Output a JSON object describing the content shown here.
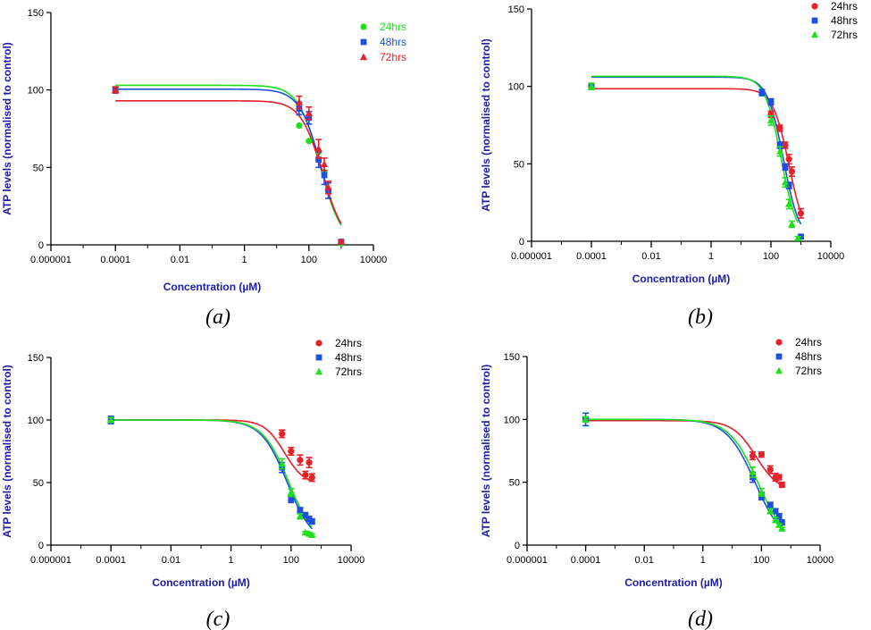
{
  "series_colors": {
    "24hrs": "#e8202a",
    "48hrs": "#1f4fe0",
    "72hrs": "#1ee01a"
  },
  "series_colors_a": {
    "24hrs": "#1ee01a",
    "48hrs": "#1f4fe0",
    "72hrs": "#e8202a"
  },
  "chart_data": [
    {
      "id": "a",
      "type": "scatter",
      "caption": "(a)",
      "xlabel": "Concentration (µM)",
      "ylabel": "ATP levels (normalised to control)",
      "xscale": "log",
      "xlim": [
        1e-06,
        10000
      ],
      "ylim": [
        0,
        150
      ],
      "xticks": [
        "0.000001",
        "0.0001",
        "0.01",
        "1",
        "100",
        "10000"
      ],
      "yticks": [
        "0",
        "50",
        "100",
        "150"
      ],
      "legend_position": "top-right",
      "legend_text_colored": true,
      "series": [
        {
          "name": "24hrs",
          "marker": "circle",
          "color": "#1ee01a",
          "top": 103,
          "ic50": 220,
          "hill": 1.3,
          "cutoff": 1000,
          "points": [
            [
              0.0001,
              100,
              0
            ],
            [
              50,
              77,
              0
            ],
            [
              100,
              67,
              0
            ],
            [
              200,
              60,
              0
            ],
            [
              300,
              47,
              0
            ],
            [
              400,
              35,
              0
            ],
            [
              1000,
              1,
              0
            ]
          ]
        },
        {
          "name": "48hrs",
          "marker": "square",
          "color": "#1f4fe0",
          "top": 100.5,
          "ic50": 240,
          "hill": 1.3,
          "cutoff": 1000,
          "points": [
            [
              0.0001,
              100,
              2
            ],
            [
              50,
              88,
              4
            ],
            [
              100,
              82,
              4
            ],
            [
              200,
              55,
              5
            ],
            [
              300,
              45,
              6
            ],
            [
              400,
              35,
              5
            ],
            [
              1000,
              2,
              1
            ]
          ]
        },
        {
          "name": "72hrs",
          "marker": "triangle",
          "color": "#e8202a",
          "top": 93,
          "ic50": 260,
          "hill": 1.3,
          "cutoff": 1000,
          "points": [
            [
              0.0001,
              100,
              2
            ],
            [
              50,
              92,
              4
            ],
            [
              100,
              85,
              4
            ],
            [
              200,
              62,
              6
            ],
            [
              300,
              52,
              4
            ],
            [
              400,
              37,
              4
            ],
            [
              1000,
              2,
              1
            ]
          ]
        }
      ]
    },
    {
      "id": "b",
      "type": "scatter",
      "caption": "(b)",
      "xlabel": "Concentration (µM)",
      "ylabel": "ATP levels (normalised to control)",
      "xscale": "log",
      "xlim": [
        1e-06,
        10000
      ],
      "ylim": [
        0,
        150
      ],
      "xticks": [
        "0.000001",
        "0.0001",
        "0.01",
        "1",
        "100",
        "10000"
      ],
      "yticks": [
        "0",
        "50",
        "100",
        "150"
      ],
      "legend_position": "top-right",
      "legend_text_colored": false,
      "series": [
        {
          "name": "24hrs",
          "marker": "circle",
          "color": "#e8202a",
          "top": 98.5,
          "ic50": 400,
          "hill": 1.6,
          "cutoff": 1000,
          "points": [
            [
              0.0001,
              100,
              2
            ],
            [
              100,
              82,
              2
            ],
            [
              200,
              73,
              2
            ],
            [
              300,
              62,
              2
            ],
            [
              400,
              53,
              3
            ],
            [
              500,
              45,
              3
            ],
            [
              1000,
              18,
              3
            ]
          ]
        },
        {
          "name": "48hrs",
          "marker": "square",
          "color": "#1f4fe0",
          "top": 106,
          "ic50": 260,
          "hill": 1.6,
          "cutoff": 1000,
          "points": [
            [
              0.0001,
              100,
              2
            ],
            [
              50,
              96,
              2
            ],
            [
              100,
              90,
              2
            ],
            [
              200,
              62,
              2
            ],
            [
              300,
              48,
              2
            ],
            [
              400,
              36,
              2
            ],
            [
              1000,
              3,
              1
            ]
          ]
        },
        {
          "name": "72hrs",
          "marker": "triangle",
          "color": "#1ee01a",
          "top": 106.5,
          "ic50": 220,
          "hill": 1.6,
          "cutoff": 800,
          "points": [
            [
              0.0001,
              100,
              2
            ],
            [
              100,
              78,
              3
            ],
            [
              200,
              58,
              3
            ],
            [
              300,
              38,
              3
            ],
            [
              400,
              24,
              3
            ],
            [
              500,
              11,
              2
            ],
            [
              800,
              2,
              1
            ]
          ]
        }
      ]
    },
    {
      "id": "c",
      "type": "scatter",
      "caption": "(c)",
      "xlabel": "Concentration (µM)",
      "ylabel": "ATP levels (normalised to control)",
      "xscale": "log",
      "xlim": [
        1e-06,
        10000
      ],
      "ylim": [
        0,
        150
      ],
      "xticks": [
        "0.000001",
        "0.0001",
        "0.01",
        "1",
        "100",
        "10000"
      ],
      "yticks": [
        "0",
        "50",
        "100",
        "150"
      ],
      "legend_position": "top-right",
      "legend_text_colored": false,
      "series": [
        {
          "name": "24hrs",
          "marker": "circle",
          "color": "#e8202a",
          "top": 100,
          "bottom": 48,
          "ic50": 60,
          "hill": 1.3,
          "cutoff": 500,
          "points": [
            [
              0.0001,
              100,
              2
            ],
            [
              50,
              89,
              3
            ],
            [
              100,
              75,
              3
            ],
            [
              200,
              68,
              4
            ],
            [
              300,
              56,
              3
            ],
            [
              400,
              66,
              4
            ],
            [
              500,
              54,
              3
            ]
          ]
        },
        {
          "name": "48hrs",
          "marker": "square",
          "color": "#1f4fe0",
          "top": 100,
          "ic50": 75,
          "hill": 1.0,
          "cutoff": 500,
          "points": [
            [
              0.0001,
              100,
              3
            ],
            [
              50,
              62,
              4
            ],
            [
              100,
              37,
              3
            ],
            [
              200,
              28,
              2
            ],
            [
              300,
              24,
              2
            ],
            [
              400,
              21,
              2
            ],
            [
              500,
              19,
              2
            ]
          ]
        },
        {
          "name": "72hrs",
          "marker": "triangle",
          "color": "#1ee01a",
          "top": 100,
          "ic50": 85,
          "hill": 1.0,
          "cutoff": 500,
          "points": [
            [
              0.0001,
              100,
              2
            ],
            [
              50,
              65,
              4
            ],
            [
              100,
              42,
              3
            ],
            [
              200,
              23,
              2
            ],
            [
              300,
              10,
              1
            ],
            [
              400,
              9,
              1
            ],
            [
              500,
              8,
              1
            ]
          ]
        }
      ]
    },
    {
      "id": "d",
      "type": "scatter",
      "caption": "(d)",
      "xlabel": "Concentration (µM)",
      "ylabel": "ATP levels (normalised to control)",
      "xscale": "log",
      "xlim": [
        1e-06,
        10000
      ],
      "ylim": [
        0,
        150
      ],
      "xticks": [
        "0.000001",
        "0.0001",
        "0.01",
        "1",
        "100",
        "10000"
      ],
      "yticks": [
        "0",
        "50",
        "100",
        "150"
      ],
      "legend_position": "top-right",
      "legend_text_colored": false,
      "series": [
        {
          "name": "24hrs",
          "marker": "circle",
          "color": "#e8202a",
          "top": 99,
          "bottom": 42,
          "ic50": 65,
          "hill": 1.1,
          "cutoff": 500,
          "points": [
            [
              0.0001,
              100,
              2
            ],
            [
              50,
              71,
              3
            ],
            [
              100,
              72,
              2
            ],
            [
              200,
              60,
              3
            ],
            [
              300,
              54,
              3
            ],
            [
              400,
              54,
              2
            ],
            [
              500,
              48,
              2
            ]
          ]
        },
        {
          "name": "48hrs",
          "marker": "square",
          "color": "#1f4fe0",
          "top": 100,
          "ic50": 60,
          "hill": 0.9,
          "cutoff": 500,
          "points": [
            [
              0.0001,
              100,
              5
            ],
            [
              50,
              54,
              4
            ],
            [
              100,
              39,
              3
            ],
            [
              200,
              32,
              2
            ],
            [
              300,
              27,
              2
            ],
            [
              400,
              23,
              2
            ],
            [
              500,
              18,
              2
            ]
          ]
        },
        {
          "name": "72hrs",
          "marker": "triangle",
          "color": "#1ee01a",
          "top": 100,
          "ic50": 75,
          "hill": 0.9,
          "cutoff": 500,
          "points": [
            [
              0.0001,
              100,
              2
            ],
            [
              50,
              58,
              4
            ],
            [
              100,
              42,
              3
            ],
            [
              200,
              27,
              2
            ],
            [
              300,
              20,
              2
            ],
            [
              400,
              16,
              1
            ],
            [
              500,
              13,
              1
            ]
          ]
        }
      ]
    }
  ]
}
